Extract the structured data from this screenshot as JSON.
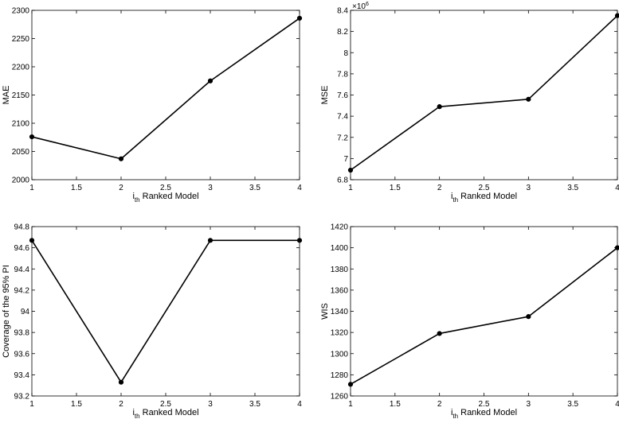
{
  "figure": {
    "background": "#ffffff",
    "line_color": "#000000",
    "marker": "filled-circle"
  },
  "chart_data": [
    {
      "type": "line",
      "x": [
        1,
        2,
        3,
        4
      ],
      "values": [
        2076,
        2037,
        2175,
        2286
      ],
      "ylabel": "MAE",
      "xlabel_main": "i",
      "xlabel_sub": "th",
      "xlabel_rest": " Ranked Model",
      "xlim": [
        1,
        4
      ],
      "ylim": [
        2000,
        2300
      ],
      "xticks": [
        1,
        1.5,
        2,
        2.5,
        3,
        3.5,
        4
      ],
      "xtick_labels": [
        "1",
        "1.5",
        "2",
        "2.5",
        "3",
        "3.5",
        "4"
      ],
      "yticks": [
        2000,
        2050,
        2100,
        2150,
        2200,
        2250,
        2300
      ],
      "ytick_labels": [
        "2000",
        "2050",
        "2100",
        "2150",
        "2200",
        "2250",
        "2300"
      ],
      "exponent_label": "",
      "grid": false
    },
    {
      "type": "line",
      "x": [
        1,
        2,
        3,
        4
      ],
      "values": [
        6.89,
        7.49,
        7.56,
        8.35
      ],
      "ylabel": "MSE",
      "xlabel_main": "i",
      "xlabel_sub": "th",
      "xlabel_rest": " Ranked Model",
      "xlim": [
        1,
        4
      ],
      "ylim": [
        6.8,
        8.4
      ],
      "xticks": [
        1,
        1.5,
        2,
        2.5,
        3,
        3.5,
        4
      ],
      "xtick_labels": [
        "1",
        "1.5",
        "2",
        "2.5",
        "3",
        "3.5",
        "4"
      ],
      "yticks": [
        6.8,
        7,
        7.2,
        7.4,
        7.6,
        7.8,
        8,
        8.2,
        8.4
      ],
      "ytick_labels": [
        "6.8",
        "7",
        "7.2",
        "7.4",
        "7.6",
        "7.8",
        "8",
        "8.2",
        "8.4"
      ],
      "exponent_label": "×10",
      "exponent_power": "6",
      "grid": false
    },
    {
      "type": "line",
      "x": [
        1,
        2,
        3,
        4
      ],
      "values": [
        94.67,
        93.33,
        94.67,
        94.67
      ],
      "ylabel": "Coverage of the 95% PI",
      "xlabel_main": "i",
      "xlabel_sub": "th",
      "xlabel_rest": " Ranked Model",
      "xlim": [
        1,
        4
      ],
      "ylim": [
        93.2,
        94.8
      ],
      "xticks": [
        1,
        1.5,
        2,
        2.5,
        3,
        3.5,
        4
      ],
      "xtick_labels": [
        "1",
        "1.5",
        "2",
        "2.5",
        "3",
        "3.5",
        "4"
      ],
      "yticks": [
        93.2,
        93.4,
        93.6,
        93.8,
        94,
        94.2,
        94.4,
        94.6,
        94.8
      ],
      "ytick_labels": [
        "93.2",
        "93.4",
        "93.6",
        "93.8",
        "94",
        "94.2",
        "94.4",
        "94.6",
        "94.8"
      ],
      "exponent_label": "",
      "grid": false
    },
    {
      "type": "line",
      "x": [
        1,
        2,
        3,
        4
      ],
      "values": [
        1271,
        1319,
        1335,
        1400
      ],
      "ylabel": "WIS",
      "xlabel_main": "i",
      "xlabel_sub": "th",
      "xlabel_rest": " Ranked Model",
      "xlim": [
        1,
        4
      ],
      "ylim": [
        1260,
        1420
      ],
      "xticks": [
        1,
        1.5,
        2,
        2.5,
        3,
        3.5,
        4
      ],
      "xtick_labels": [
        "1",
        "1.5",
        "2",
        "2.5",
        "3",
        "3.5",
        "4"
      ],
      "yticks": [
        1260,
        1280,
        1300,
        1320,
        1340,
        1360,
        1380,
        1400,
        1420
      ],
      "ytick_labels": [
        "1260",
        "1280",
        "1300",
        "1320",
        "1340",
        "1360",
        "1380",
        "1400",
        "1420"
      ],
      "exponent_label": "",
      "grid": false
    }
  ]
}
